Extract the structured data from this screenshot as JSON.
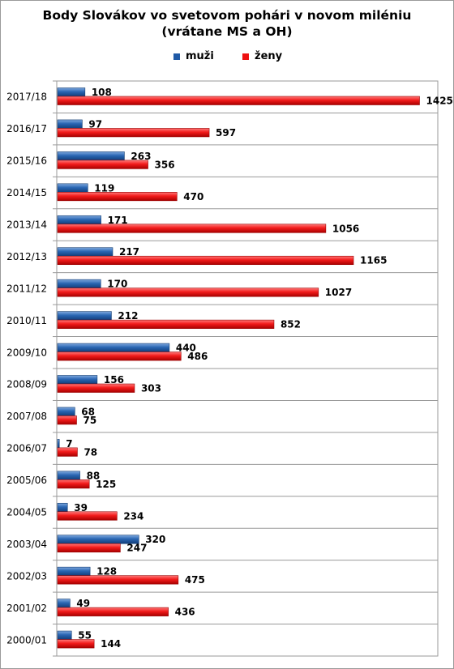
{
  "chart_data": {
    "type": "bar",
    "orientation": "horizontal",
    "title_lines": [
      "Body Slovákov vo svetovom pohári v novom miléniu",
      "(vrátane MS a OH)"
    ],
    "categories": [
      "2017/18",
      "2016/17",
      "2015/16",
      "2014/15",
      "2013/14",
      "2012/13",
      "2011/12",
      "2010/11",
      "2009/10",
      "2008/09",
      "2007/08",
      "2006/07",
      "2005/06",
      "2004/05",
      "2003/04",
      "2002/03",
      "2001/02",
      "2000/01"
    ],
    "series": [
      {
        "name": "muži",
        "color": "#1f5aa6",
        "values": [
          108,
          97,
          263,
          119,
          171,
          217,
          170,
          212,
          440,
          156,
          68,
          7,
          88,
          39,
          320,
          128,
          49,
          55
        ]
      },
      {
        "name": "ženy",
        "color": "#ee1111",
        "values": [
          1425,
          597,
          356,
          470,
          1056,
          1165,
          1027,
          852,
          486,
          303,
          75,
          78,
          125,
          234,
          247,
          475,
          436,
          144
        ]
      }
    ],
    "xlim": [
      0,
      1500
    ],
    "grid": true,
    "legend_position": "top-center",
    "data_labels": true
  }
}
